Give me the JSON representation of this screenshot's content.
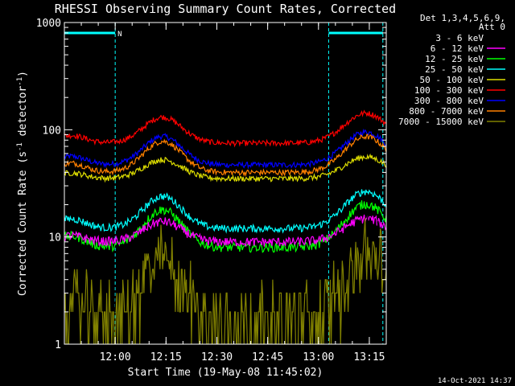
{
  "chart_data": {
    "type": "line",
    "title": "RHESSI Observing Summary Count Rates, Corrected",
    "xlabel": "Start Time (19-May-08 11:45:02)",
    "ylabel_main": "Corrected Count Rate (s",
    "ylabel_sup1": "-1",
    "ylabel_mid": " detector",
    "ylabel_sup2": "-1",
    "ylabel_end": ")",
    "yscale": "log",
    "xlim_minutes": [
      0,
      95
    ],
    "ylim": [
      1,
      1000
    ],
    "x_ticks": [
      {
        "t": 15,
        "label": "12:00"
      },
      {
        "t": 30,
        "label": "12:15"
      },
      {
        "t": 45,
        "label": "12:30"
      },
      {
        "t": 60,
        "label": "12:45"
      },
      {
        "t": 75,
        "label": "13:00"
      },
      {
        "t": 90,
        "label": "13:15"
      }
    ],
    "y_ticks": [
      {
        "v": 1,
        "label": "1"
      },
      {
        "v": 10,
        "label": "10"
      },
      {
        "v": 100,
        "label": "100"
      },
      {
        "v": 1000,
        "label": "1000"
      }
    ],
    "legend_header": [
      "Det 1,3,4,5,6,9,",
      "Att 0"
    ],
    "series": [
      {
        "name": "3 - 6 keV",
        "color": "#000000",
        "base": 3.5,
        "amp": 2.0,
        "noise": 0.25
      },
      {
        "name": "6 - 12 keV",
        "color": "#ff00ff",
        "base": 9.0,
        "amp": 1.55,
        "noise": 0.05
      },
      {
        "name": "12 - 25 keV",
        "color": "#00ff00",
        "base": 8.0,
        "amp": 2.25,
        "noise": 0.05
      },
      {
        "name": "25 - 50 keV",
        "color": "#00ffff",
        "base": 12.0,
        "amp": 2.0,
        "noise": 0.04
      },
      {
        "name": "50 - 100 keV",
        "color": "#dddd00",
        "base": 35.0,
        "amp": 1.5,
        "noise": 0.03
      },
      {
        "name": "100 - 300 keV",
        "color": "#ff0000",
        "base": 75.0,
        "amp": 1.75,
        "noise": 0.03
      },
      {
        "name": "300 - 800 keV",
        "color": "#0000ff",
        "base": 47.0,
        "amp": 1.85,
        "noise": 0.03
      },
      {
        "name": "800 - 7000 keV",
        "color": "#ff8000",
        "base": 40.0,
        "amp": 1.95,
        "noise": 0.03
      },
      {
        "name": "7000 - 15000 keV",
        "color": "#808000",
        "base": 1.8,
        "amp": 3.6,
        "noise": 0.3
      }
    ],
    "saa_intervals_minutes": [
      [
        0,
        15
      ],
      [
        78,
        94
      ]
    ],
    "saa_flag_label": "N",
    "timestamp": "14-Oct-2021 14:37"
  }
}
